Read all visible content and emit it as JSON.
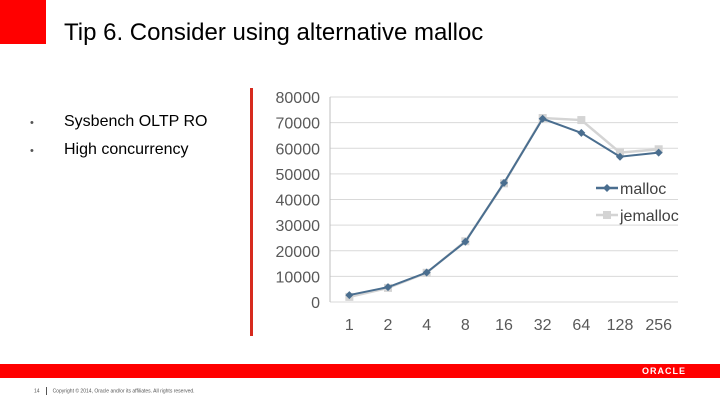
{
  "slide": {
    "title": "Tip 6. Consider using alternative malloc",
    "bullets": [
      "Sysbench OLTP RO",
      "High concurrency"
    ],
    "footer": {
      "page_number": "14",
      "copyright": "Copyright © 2014, Oracle and/or its affiliates. All rights reserved.",
      "logo_text": "ORACLE"
    },
    "colors": {
      "accent": "#ff0000",
      "chart_rule": "#d62a1e",
      "malloc": "#4a6e8f",
      "jemalloc": "#d4d4d4"
    }
  },
  "chart_data": {
    "type": "line",
    "title": "",
    "xlabel": "",
    "ylabel": "",
    "categories": [
      "1",
      "2",
      "4",
      "8",
      "16",
      "32",
      "64",
      "128",
      "256"
    ],
    "yticks": [
      "0",
      "10000",
      "20000",
      "30000",
      "40000",
      "50000",
      "60000",
      "70000",
      "80000"
    ],
    "ylim": [
      0,
      80000
    ],
    "grid": true,
    "legend": "right",
    "series": [
      {
        "name": "malloc",
        "color": "#4a6e8f",
        "marker": "diamond",
        "values": [
          2700,
          5800,
          11500,
          23500,
          46500,
          71500,
          66000,
          56700,
          58300
        ]
      },
      {
        "name": "jemalloc",
        "color": "#d4d4d4",
        "marker": "square",
        "values": [
          2000,
          5500,
          11400,
          23700,
          46300,
          71800,
          71000,
          58300,
          59600
        ]
      }
    ]
  }
}
